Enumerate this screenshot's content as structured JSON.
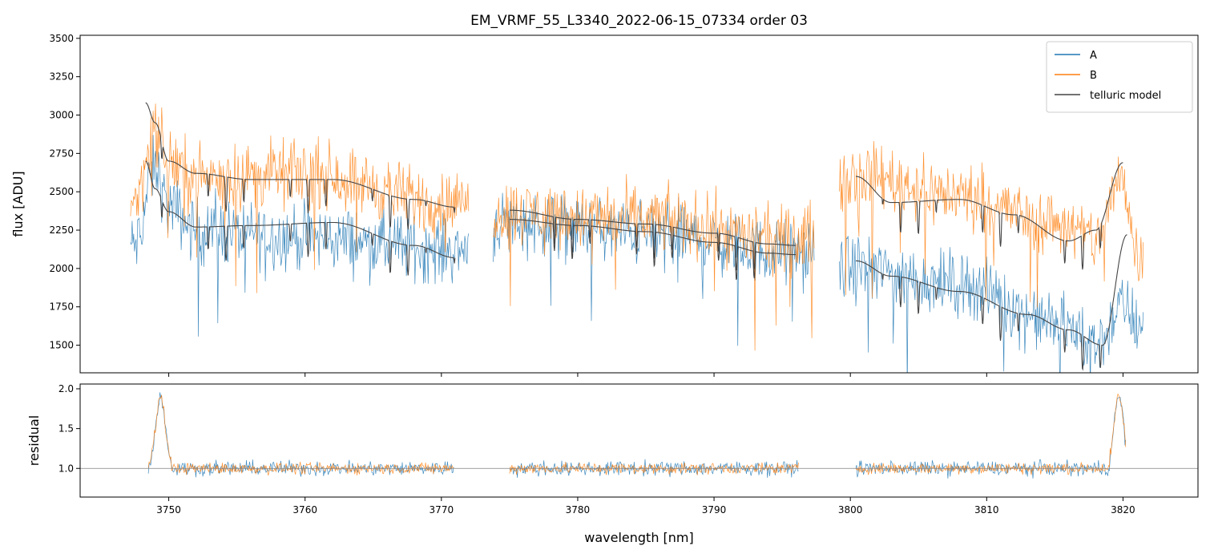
{
  "chart_data": [
    {
      "type": "line",
      "panel": "flux",
      "title": "EM_VRMF_55_L3340_2022-06-15_07334  order 03",
      "ylabel": "flux [ADU]",
      "xlabel": "",
      "xlim": [
        3743.5,
        3825.5
      ],
      "ylim": [
        1320,
        3520
      ],
      "yticks": [
        1500,
        1750,
        2000,
        2250,
        2500,
        2750,
        3000,
        3250,
        3500
      ],
      "xticks": [
        3750,
        3760,
        3770,
        3780,
        3790,
        3800,
        3810,
        3820
      ],
      "segments": [
        [
          3747.2,
          3772.0
        ],
        [
          3773.8,
          3797.4
        ],
        [
          3799.2,
          3821.5
        ]
      ],
      "legend": {
        "position": "top-right",
        "entries": [
          "A",
          "B",
          "telluric model"
        ]
      },
      "series": [
        {
          "name": "A",
          "color": "#1f77b4",
          "description": "noisy spectrum, lower level",
          "envelope_x": [
            3747.5,
            3749.0,
            3750.0,
            3752.0,
            3760.0,
            3771.0,
            3775.0,
            3785.0,
            3796.0,
            3800.3,
            3808.0,
            3815.0,
            3818.0,
            3820.0,
            3821.0
          ],
          "envelope_y": [
            2150,
            2650,
            2400,
            2250,
            2200,
            2120,
            2300,
            2230,
            2100,
            2000,
            1900,
            1650,
            1500,
            1750,
            1650
          ],
          "noise": 180
        },
        {
          "name": "B",
          "color": "#ff7f0e",
          "description": "noisy spectrum, upper level",
          "envelope_x": [
            3747.5,
            3749.0,
            3750.0,
            3752.0,
            3760.0,
            3771.0,
            3775.0,
            3785.0,
            3796.0,
            3800.3,
            3808.0,
            3815.0,
            3818.0,
            3820.0,
            3821.0
          ],
          "envelope_y": [
            2450,
            2900,
            2700,
            2600,
            2620,
            2420,
            2370,
            2320,
            2180,
            2620,
            2480,
            2300,
            2200,
            2600,
            2100
          ],
          "noise": 180
        },
        {
          "name": "telluric model",
          "color": "#444444",
          "description": "smooth models with absorption dips",
          "curves": [
            {
              "x": [
                3748.3,
                3749.0,
                3750.0,
                3752.0,
                3756.0,
                3762.0,
                3768.0,
                3771.0
              ],
              "y": [
                3080,
                2950,
                2700,
                2620,
                2580,
                2580,
                2450,
                2400
              ]
            },
            {
              "x": [
                3748.3,
                3749.0,
                3750.0,
                3752.0,
                3756.0,
                3762.0,
                3768.0,
                3771.0
              ],
              "y": [
                2700,
                2520,
                2370,
                2270,
                2280,
                2300,
                2150,
                2070
              ]
            },
            {
              "x": [
                3775.0,
                3780.0,
                3785.0,
                3790.0,
                3794.0,
                3796.0
              ],
              "y": [
                2380,
                2320,
                2290,
                2230,
                2160,
                2150
              ]
            },
            {
              "x": [
                3775.0,
                3780.0,
                3785.0,
                3790.0,
                3794.0,
                3796.0
              ],
              "y": [
                2320,
                2280,
                2240,
                2170,
                2100,
                2090
              ]
            },
            {
              "x": [
                3800.4,
                3803.0,
                3808.0,
                3812.0,
                3816.0,
                3818.0,
                3820.0
              ],
              "y": [
                2600,
                2430,
                2450,
                2350,
                2180,
                2250,
                2690
              ]
            },
            {
              "x": [
                3800.4,
                3803.0,
                3808.0,
                3813.0,
                3816.0,
                3818.5,
                3820.3
              ],
              "y": [
                2050,
                1950,
                1850,
                1700,
                1600,
                1500,
                2220
              ]
            }
          ]
        }
      ]
    },
    {
      "type": "line",
      "panel": "residual",
      "title": "",
      "ylabel": "residual",
      "xlabel": "wavelength [nm]",
      "xlim": [
        3743.5,
        3825.5
      ],
      "ylim": [
        0.64,
        2.06
      ],
      "yticks": [
        1.0,
        1.5,
        2.0
      ],
      "ytick_labels": [
        "1.0",
        "1.5",
        "2.0"
      ],
      "xticks": [
        3750,
        3760,
        3770,
        3780,
        3790,
        3800,
        3810,
        3820
      ],
      "reference_line": 1.0,
      "segments": [
        [
          3748.5,
          3770.9
        ],
        [
          3775.0,
          3796.2
        ],
        [
          3800.4,
          3820.2
        ]
      ],
      "series": [
        {
          "name": "A",
          "color": "#1f77b4",
          "noise": 0.13
        },
        {
          "name": "B",
          "color": "#ff7f0e",
          "noise": 0.1
        }
      ]
    }
  ]
}
